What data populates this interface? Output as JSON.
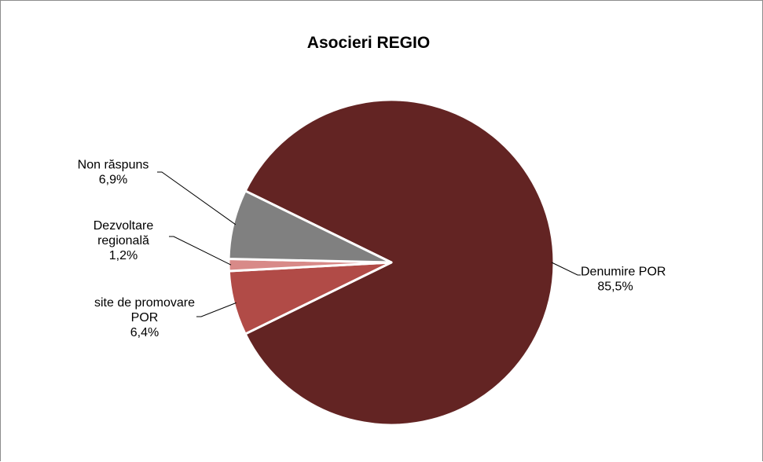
{
  "chart_data": {
    "type": "pie",
    "title": "Asocieri REGIO",
    "slices": [
      {
        "label_lines": [
          "Denumire POR"
        ],
        "value": 85.5,
        "value_label": "85,5%",
        "color": "#632423"
      },
      {
        "label_lines": [
          "site de promovare",
          "POR"
        ],
        "value": 6.4,
        "value_label": "6,4%",
        "color": "#b14b47"
      },
      {
        "label_lines": [
          "Dezvoltare",
          "regională"
        ],
        "value": 1.2,
        "value_label": "1,2%",
        "color": "#d88a88"
      },
      {
        "label_lines": [
          "Non răspuns"
        ],
        "value": 6.9,
        "value_label": "6,9%",
        "color": "#808080"
      }
    ]
  }
}
